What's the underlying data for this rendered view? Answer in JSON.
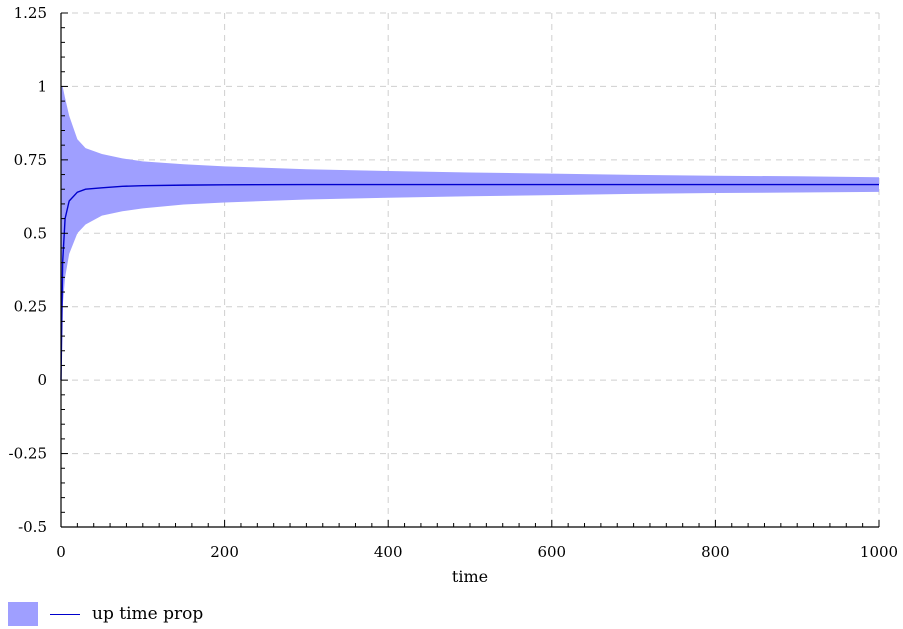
{
  "chart_data": {
    "type": "area",
    "title": "",
    "xlabel": "time",
    "ylabel": "",
    "xlim": [
      0,
      1000
    ],
    "ylim": [
      -0.5,
      1.25
    ],
    "xticks": [
      0,
      200,
      400,
      600,
      800,
      1000
    ],
    "xtick_labels": [
      "0",
      "200",
      "400",
      "600",
      "800",
      "1000"
    ],
    "yticks": [
      -0.5,
      -0.25,
      0,
      0.25,
      0.5,
      0.75,
      1,
      1.25
    ],
    "ytick_labels": [
      "-0.5",
      "-0.25",
      "0",
      "0.25",
      "0.5",
      "0.75",
      "1",
      "1.25"
    ],
    "grid": true,
    "legend_position": "bottom-left",
    "series": [
      {
        "name": "up time prop",
        "color": "#0000cc",
        "band_color": "#9f9fff",
        "x": [
          0,
          2,
          5,
          10,
          20,
          30,
          50,
          75,
          100,
          150,
          200,
          300,
          400,
          500,
          600,
          700,
          800,
          900,
          1000
        ],
        "mean": [
          0.0,
          0.4,
          0.55,
          0.61,
          0.64,
          0.65,
          0.655,
          0.66,
          0.662,
          0.664,
          0.665,
          0.666,
          0.666,
          0.666,
          0.666,
          0.666,
          0.666,
          0.666,
          0.666
        ],
        "upper": [
          1.0,
          1.0,
          0.96,
          0.9,
          0.82,
          0.79,
          0.77,
          0.755,
          0.745,
          0.735,
          0.728,
          0.718,
          0.712,
          0.707,
          0.703,
          0.699,
          0.696,
          0.694,
          0.691
        ],
        "lower": [
          0.0,
          0.25,
          0.35,
          0.43,
          0.5,
          0.53,
          0.56,
          0.575,
          0.585,
          0.598,
          0.605,
          0.615,
          0.621,
          0.626,
          0.63,
          0.634,
          0.637,
          0.639,
          0.641
        ]
      }
    ]
  },
  "legend": {
    "label": "up time prop"
  }
}
